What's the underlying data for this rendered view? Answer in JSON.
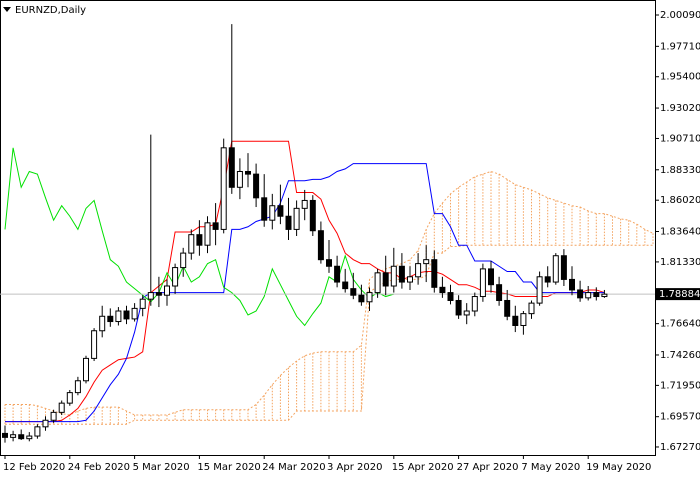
{
  "chart_data": {
    "type": "candlestick",
    "title": "EURNZD,Daily",
    "categories": [
      "12 Feb 2020",
      null,
      null,
      null,
      null,
      null,
      null,
      null,
      "24 Feb 2020",
      null,
      null,
      null,
      null,
      null,
      null,
      null,
      "5 Mar 2020",
      null,
      null,
      null,
      null,
      null,
      null,
      null,
      "15 Mar 2020",
      null,
      null,
      null,
      null,
      null,
      null,
      null,
      "24 Mar 2020",
      null,
      null,
      null,
      null,
      null,
      null,
      null,
      "3 Apr 2020",
      null,
      null,
      null,
      null,
      null,
      null,
      null,
      "15 Apr 2020",
      null,
      null,
      null,
      null,
      null,
      null,
      null,
      "27 Apr 2020",
      null,
      null,
      null,
      null,
      null,
      null,
      null,
      "7 May 2020",
      null,
      null,
      null,
      null,
      null,
      null,
      null,
      "19 May 2020",
      null,
      null,
      null,
      null,
      null,
      null,
      null,
      null
    ],
    "open": [
      1.683,
      1.68,
      1.682,
      1.679,
      1.681,
      1.688,
      1.693,
      1.699,
      1.706,
      1.714,
      1.723,
      1.74,
      1.761,
      1.772,
      1.768,
      1.776,
      1.77,
      1.778,
      1.785,
      1.79,
      1.788,
      1.795,
      1.809,
      1.82,
      1.834,
      1.826,
      1.843,
      1.838,
      1.9,
      1.87,
      1.882,
      1.88,
      1.862,
      1.845,
      1.856,
      1.848,
      1.838,
      1.854,
      1.86,
      1.837,
      1.815,
      1.81,
      1.798,
      1.793,
      1.788,
      1.783,
      1.79,
      1.805,
      1.795,
      1.81,
      1.798,
      1.802,
      1.812,
      1.815,
      1.794,
      1.79,
      1.784,
      1.773,
      1.776,
      1.787,
      1.808,
      1.796,
      1.784,
      1.772,
      1.765,
      1.774,
      1.782,
      1.802,
      1.798,
      1.818,
      1.8,
      1.792,
      1.786,
      1.79,
      1.787,
      null,
      null,
      null,
      null,
      null,
      null
    ],
    "high": [
      1.689,
      1.685,
      1.686,
      1.684,
      1.69,
      1.696,
      1.701,
      1.708,
      1.716,
      1.726,
      1.742,
      1.763,
      1.78,
      1.778,
      1.779,
      1.78,
      1.782,
      1.788,
      1.91,
      1.802,
      1.8,
      1.812,
      1.824,
      1.838,
      1.845,
      1.848,
      1.858,
      1.907,
      1.994,
      1.892,
      1.896,
      1.888,
      1.88,
      1.865,
      1.872,
      1.862,
      1.86,
      1.868,
      1.864,
      1.844,
      1.83,
      1.818,
      1.808,
      1.805,
      1.796,
      1.794,
      1.808,
      1.818,
      1.824,
      1.82,
      1.81,
      1.82,
      1.826,
      1.822,
      1.802,
      1.796,
      1.788,
      1.782,
      1.79,
      1.812,
      1.814,
      1.802,
      1.792,
      1.78,
      1.776,
      1.784,
      1.806,
      1.81,
      1.82,
      1.823,
      1.81,
      1.799,
      1.795,
      1.794,
      1.792,
      null,
      null,
      null,
      null,
      null,
      null
    ],
    "low": [
      1.676,
      1.677,
      1.678,
      1.677,
      1.679,
      1.685,
      1.691,
      1.697,
      1.704,
      1.712,
      1.721,
      1.738,
      1.756,
      1.764,
      1.765,
      1.766,
      1.768,
      1.772,
      1.78,
      1.779,
      1.78,
      1.789,
      1.802,
      1.815,
      1.818,
      1.82,
      1.826,
      1.835,
      1.865,
      1.861,
      1.87,
      1.855,
      1.84,
      1.838,
      1.842,
      1.83,
      1.833,
      1.845,
      1.833,
      1.812,
      1.805,
      1.794,
      1.79,
      1.785,
      1.78,
      1.776,
      1.786,
      1.788,
      1.79,
      1.793,
      1.792,
      1.796,
      1.798,
      1.79,
      1.786,
      1.781,
      1.77,
      1.766,
      1.772,
      1.783,
      1.79,
      1.78,
      1.769,
      1.76,
      1.758,
      1.77,
      1.78,
      1.794,
      1.796,
      1.795,
      1.788,
      1.783,
      1.784,
      1.784,
      1.786,
      null,
      null,
      null,
      null,
      null,
      null
    ],
    "close": [
      1.68,
      1.682,
      1.679,
      1.681,
      1.688,
      1.693,
      1.699,
      1.706,
      1.714,
      1.723,
      1.74,
      1.761,
      1.772,
      1.768,
      1.776,
      1.77,
      1.778,
      1.785,
      1.79,
      1.788,
      1.795,
      1.809,
      1.82,
      1.834,
      1.826,
      1.843,
      1.838,
      1.9,
      1.87,
      1.882,
      1.88,
      1.862,
      1.845,
      1.856,
      1.848,
      1.838,
      1.854,
      1.86,
      1.837,
      1.815,
      1.81,
      1.798,
      1.793,
      1.788,
      1.783,
      1.79,
      1.805,
      1.795,
      1.81,
      1.798,
      1.802,
      1.812,
      1.815,
      1.794,
      1.79,
      1.784,
      1.773,
      1.776,
      1.787,
      1.808,
      1.796,
      1.784,
      1.772,
      1.765,
      1.774,
      1.782,
      1.802,
      1.798,
      1.818,
      1.8,
      1.792,
      1.786,
      1.79,
      1.787,
      1.7888,
      null,
      null,
      null,
      null,
      null,
      null
    ],
    "up_color": "#ffffff",
    "down_color": "#000000",
    "lines": [
      {
        "color": "#ff0000",
        "values": [
          1.692,
          1.692,
          1.692,
          1.692,
          1.692,
          1.692,
          1.692,
          1.693,
          1.697,
          1.702,
          1.711,
          1.722,
          1.731,
          1.735,
          1.739,
          1.74,
          1.741,
          1.745,
          1.79,
          1.795,
          1.8,
          1.836,
          1.836,
          1.836,
          1.84,
          1.84,
          1.842,
          1.87,
          1.905,
          1.905,
          1.905,
          1.905,
          1.905,
          1.905,
          1.905,
          1.905,
          1.866,
          1.866,
          1.866,
          1.861,
          1.845,
          1.835,
          1.82,
          1.815,
          1.812,
          1.812,
          1.808,
          1.805,
          1.805,
          1.8,
          1.802,
          1.805,
          1.806,
          1.806,
          1.804,
          1.8,
          1.796,
          1.796,
          1.794,
          1.791,
          1.791,
          1.79,
          1.789,
          1.787,
          1.787,
          1.787,
          1.787,
          1.787,
          1.79,
          1.79,
          1.79,
          1.79,
          1.792,
          1.792,
          1.79,
          null,
          null,
          null,
          null,
          null,
          null
        ]
      },
      {
        "color": "#0000ff",
        "values": [
          1.692,
          1.692,
          1.692,
          1.692,
          1.692,
          1.692,
          1.692,
          1.692,
          1.692,
          1.692,
          1.693,
          1.7,
          1.71,
          1.72,
          1.728,
          1.74,
          1.76,
          1.786,
          1.79,
          1.79,
          1.79,
          1.79,
          1.79,
          1.79,
          1.79,
          1.79,
          1.79,
          1.79,
          1.838,
          1.838,
          1.84,
          1.844,
          1.846,
          1.848,
          1.858,
          1.875,
          1.875,
          1.875,
          1.876,
          1.876,
          1.878,
          1.882,
          1.884,
          1.888,
          1.888,
          1.888,
          1.888,
          1.888,
          1.888,
          1.888,
          1.888,
          1.888,
          1.888,
          1.85,
          1.85,
          1.84,
          1.826,
          1.826,
          1.814,
          1.814,
          1.814,
          1.81,
          1.806,
          1.806,
          1.798,
          1.798,
          1.79,
          1.79,
          1.79,
          1.79,
          1.79,
          1.79,
          1.79,
          1.79,
          1.79,
          null,
          null,
          null,
          null,
          null,
          null
        ]
      },
      {
        "color": "#00e000",
        "values": [
          1.838,
          1.9,
          1.87,
          1.882,
          1.88,
          1.862,
          1.845,
          1.856,
          1.848,
          1.838,
          1.854,
          1.86,
          1.837,
          1.815,
          1.81,
          1.798,
          1.793,
          1.788,
          1.783,
          1.79,
          1.805,
          1.795,
          1.81,
          1.798,
          1.802,
          1.812,
          1.815,
          1.794,
          1.79,
          1.784,
          1.773,
          1.776,
          1.787,
          1.808,
          1.796,
          1.784,
          1.772,
          1.765,
          1.774,
          1.782,
          1.802,
          1.798,
          1.818,
          1.8,
          1.792,
          1.786,
          1.79,
          1.787,
          1.7888,
          null,
          null,
          null,
          null,
          null,
          null,
          null,
          null,
          null,
          null,
          null,
          null,
          null,
          null,
          null,
          null,
          null,
          null,
          null,
          null,
          null,
          null,
          null,
          null,
          null,
          null,
          null,
          null,
          null,
          null,
          null,
          null
        ]
      }
    ],
    "cloud": {
      "color": "#f4a460",
      "span_a": [
        1.705,
        1.705,
        1.705,
        1.705,
        1.704,
        1.702,
        1.7,
        1.698,
        1.697,
        1.7,
        1.702,
        1.703,
        1.703,
        1.703,
        1.703,
        1.7,
        1.697,
        1.697,
        1.697,
        1.697,
        1.697,
        1.699,
        1.701,
        1.701,
        1.701,
        1.701,
        1.701,
        1.701,
        1.701,
        1.701,
        1.701,
        1.705,
        1.712,
        1.72,
        1.727,
        1.733,
        1.738,
        1.742,
        1.744,
        1.745,
        1.745,
        1.745,
        1.745,
        1.745,
        1.75,
        1.8,
        1.805,
        1.808,
        1.81,
        1.812,
        1.815,
        1.822,
        1.838,
        1.85,
        1.858,
        1.865,
        1.87,
        1.874,
        1.878,
        1.88,
        1.882,
        1.88,
        1.876,
        1.872,
        1.87,
        1.868,
        1.865,
        1.862,
        1.86,
        1.858,
        1.856,
        1.855,
        1.852,
        1.85,
        1.85,
        1.848,
        1.846,
        1.845,
        1.842,
        1.838,
        1.835
      ],
      "span_b": [
        1.69,
        1.69,
        1.69,
        1.69,
        1.69,
        1.69,
        1.69,
        1.69,
        1.69,
        1.69,
        1.69,
        1.69,
        1.69,
        1.69,
        1.69,
        1.69,
        1.693,
        1.693,
        1.693,
        1.693,
        1.693,
        1.693,
        1.693,
        1.693,
        1.693,
        1.693,
        1.693,
        1.693,
        1.693,
        1.693,
        1.693,
        1.693,
        1.693,
        1.693,
        1.693,
        1.693,
        1.7,
        1.7,
        1.7,
        1.7,
        1.7,
        1.7,
        1.7,
        1.7,
        1.7,
        1.79,
        1.795,
        1.798,
        1.8,
        1.8,
        1.8,
        1.8,
        1.803,
        1.82,
        1.82,
        1.825,
        1.825,
        1.826,
        1.826,
        1.826,
        1.826,
        1.826,
        1.826,
        1.826,
        1.826,
        1.826,
        1.826,
        1.826,
        1.826,
        1.826,
        1.826,
        1.826,
        1.826,
        1.826,
        1.826,
        1.826,
        1.826,
        1.826,
        1.826,
        1.826,
        1.826
      ]
    },
    "last_price": 1.78884,
    "ylim": [
      1.6666,
      2.0123
    ],
    "yticks": [
      {
        "value": 2.0009,
        "label": "2.00090"
      },
      {
        "value": 1.9771,
        "label": "1.97710"
      },
      {
        "value": 1.954,
        "label": "1.95400"
      },
      {
        "value": 1.9302,
        "label": "1.93020"
      },
      {
        "value": 1.9071,
        "label": "1.90710"
      },
      {
        "value": 1.8833,
        "label": "1.88330"
      },
      {
        "value": 1.8602,
        "label": "1.86020"
      },
      {
        "value": 1.8364,
        "label": "1.83640"
      },
      {
        "value": 1.8133,
        "label": "1.81330"
      },
      {
        "value": 1.7664,
        "label": "1.76640"
      },
      {
        "value": 1.7426,
        "label": "1.74260"
      },
      {
        "value": 1.7195,
        "label": "1.71950"
      },
      {
        "value": 1.6957,
        "label": "1.69570"
      },
      {
        "value": 1.6727,
        "label": "1.67270"
      }
    ]
  }
}
